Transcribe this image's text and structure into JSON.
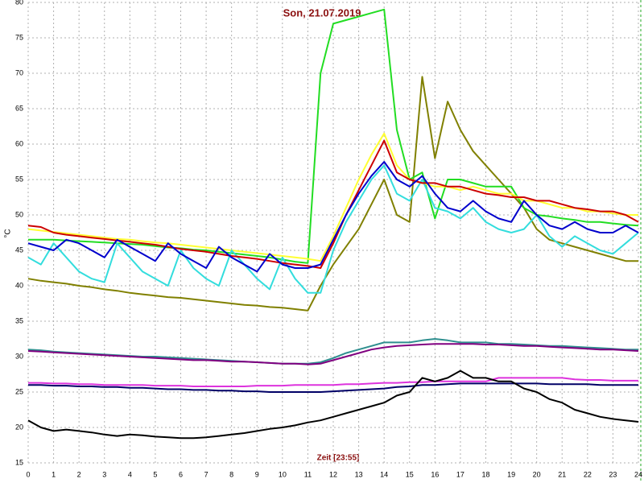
{
  "chart_data": {
    "type": "line",
    "title": "Son, 21.07.2019",
    "x_label": "Zeit [23:55]",
    "y_label": "°C",
    "xlim": [
      0,
      24
    ],
    "xticks": [
      0,
      1,
      2,
      3,
      4,
      5,
      6,
      7,
      8,
      9,
      10,
      11,
      12,
      13,
      14,
      15,
      16,
      17,
      18,
      19,
      20,
      21,
      22,
      23,
      24
    ],
    "ylim": [
      15,
      80
    ],
    "yticks": [
      15,
      20,
      25,
      30,
      35,
      40,
      45,
      50,
      55,
      60,
      65,
      70,
      75,
      80
    ],
    "grid": true,
    "x": [
      0,
      0.5,
      1,
      1.5,
      2,
      2.5,
      3,
      3.5,
      4,
      4.5,
      5,
      5.5,
      6,
      6.5,
      7,
      7.5,
      8,
      8.5,
      9,
      9.5,
      10,
      10.5,
      11,
      11.5,
      12,
      12.5,
      13,
      13.5,
      14,
      14.5,
      15,
      15.5,
      16,
      16.5,
      17,
      17.5,
      18,
      18.5,
      19,
      19.5,
      20,
      20.5,
      21,
      21.5,
      22,
      22.5,
      23,
      23.5,
      24
    ],
    "series": [
      {
        "color": "#808000",
        "values": [
          41,
          40.7,
          40.5,
          40.3,
          40,
          39.8,
          39.5,
          39.3,
          39,
          38.8,
          38.6,
          38.4,
          38.3,
          38.1,
          37.9,
          37.7,
          37.5,
          37.3,
          37.2,
          37,
          36.9,
          36.7,
          36.5,
          40,
          43,
          45.5,
          48,
          51.5,
          55,
          50,
          49,
          69.5,
          58,
          66,
          62,
          59,
          57,
          55,
          53,
          51,
          48,
          46.5,
          46,
          45.5,
          45,
          44.5,
          44,
          43.5,
          43.5
        ]
      },
      {
        "color": "#22dd22",
        "values": [
          46.5,
          46.5,
          46.5,
          46.4,
          46.3,
          46.2,
          46.1,
          46,
          45.9,
          45.8,
          45.6,
          45.4,
          45.3,
          45.1,
          45,
          44.8,
          44.6,
          44.4,
          44.2,
          44,
          43.7,
          43.4,
          43.2,
          70,
          77,
          77.5,
          78,
          78.5,
          79,
          62,
          55,
          56,
          49.5,
          55,
          55,
          54.5,
          54,
          54,
          54,
          51,
          50,
          49.8,
          49.5,
          49.3,
          49,
          49,
          48.8,
          48.6,
          48.5
        ]
      },
      {
        "color": "#ffff33",
        "values": [
          48,
          47.8,
          47.6,
          47.4,
          47.2,
          47,
          46.8,
          46.6,
          46.5,
          46.3,
          46.1,
          46,
          45.8,
          45.6,
          45.4,
          45.2,
          45,
          44.8,
          44.6,
          44.4,
          44.2,
          44,
          43.8,
          43.5,
          47,
          51,
          55,
          58.5,
          61.5,
          57,
          55,
          54.5,
          54,
          54,
          53.5,
          54,
          53.5,
          53,
          53,
          52,
          52,
          51.5,
          51,
          51,
          50.5,
          50.5,
          50.2,
          50,
          50
        ]
      },
      {
        "color": "#33dddd",
        "values": [
          44,
          43,
          46,
          44,
          42,
          41,
          40.5,
          46,
          44,
          42,
          41,
          40,
          45,
          42.5,
          41,
          40,
          45,
          43,
          41,
          39.5,
          44,
          41,
          39,
          39,
          45,
          49,
          52,
          55,
          57,
          53,
          52,
          55,
          51,
          50.5,
          49.5,
          51,
          49,
          48,
          47.5,
          48,
          50,
          47,
          45.5,
          47,
          46,
          45,
          44.5,
          46,
          47.5
        ]
      },
      {
        "color": "#cc0000",
        "values": [
          48.5,
          48.3,
          47.5,
          47.2,
          47,
          46.8,
          46.6,
          46.4,
          46.2,
          46,
          45.8,
          45.5,
          45.2,
          45,
          44.8,
          44.5,
          44.2,
          44,
          43.8,
          43.5,
          43.2,
          43,
          42.8,
          42.5,
          46,
          50,
          53.5,
          57,
          60.5,
          56,
          55,
          54.5,
          54.5,
          54,
          54,
          53.5,
          53,
          52.8,
          52.5,
          52.5,
          52,
          52,
          51.5,
          51,
          50.8,
          50.5,
          50.5,
          50,
          49
        ]
      },
      {
        "color": "#0000cc",
        "values": [
          46,
          45.5,
          45,
          46.5,
          46,
          45,
          44,
          46.5,
          45.5,
          44.5,
          43.5,
          46,
          44.5,
          43.5,
          42.5,
          45.5,
          44,
          43,
          42,
          44.5,
          43,
          42.5,
          42.5,
          43,
          46.5,
          50,
          53,
          55.5,
          57.5,
          55,
          54,
          55.5,
          53,
          51,
          50.5,
          52,
          50.5,
          49.5,
          49,
          52,
          50,
          48.5,
          48,
          49,
          48,
          47.5,
          47.5,
          48.5,
          47.5
        ]
      },
      {
        "color": "#2f8f8f",
        "values": [
          31,
          30.9,
          30.7,
          30.6,
          30.5,
          30.4,
          30.3,
          30.2,
          30.1,
          30,
          30,
          29.9,
          29.8,
          29.7,
          29.6,
          29.5,
          29.4,
          29.3,
          29.2,
          29.1,
          29,
          29,
          29,
          29.2,
          29.8,
          30.5,
          31,
          31.5,
          32,
          32,
          32,
          32.3,
          32.5,
          32.3,
          32,
          32,
          32,
          31.8,
          31.8,
          31.7,
          31.6,
          31.5,
          31.5,
          31.4,
          31.3,
          31.2,
          31.1,
          31,
          31
        ]
      },
      {
        "color": "#800080",
        "values": [
          30.8,
          30.7,
          30.6,
          30.5,
          30.4,
          30.3,
          30.2,
          30.1,
          30,
          29.9,
          29.8,
          29.7,
          29.6,
          29.5,
          29.5,
          29.4,
          29.3,
          29.3,
          29.2,
          29.1,
          29,
          29,
          28.9,
          29,
          29.5,
          30,
          30.5,
          31,
          31.3,
          31.5,
          31.6,
          31.7,
          31.8,
          31.8,
          31.8,
          31.8,
          31.7,
          31.7,
          31.6,
          31.5,
          31.5,
          31.4,
          31.3,
          31.2,
          31.1,
          31,
          31,
          30.9,
          30.8
        ]
      },
      {
        "color": "#dd33dd",
        "values": [
          26.3,
          26.3,
          26.2,
          26.2,
          26.1,
          26.1,
          26,
          26,
          26,
          26,
          25.9,
          25.9,
          25.9,
          25.8,
          25.8,
          25.8,
          25.8,
          25.8,
          25.9,
          25.9,
          25.9,
          26,
          26,
          26,
          26,
          26.1,
          26.1,
          26.2,
          26.3,
          26.3,
          26.4,
          26.4,
          26.5,
          26.5,
          26.5,
          26.5,
          26.5,
          27,
          27,
          27,
          27,
          27,
          27,
          26.8,
          26.7,
          26.7,
          26.6,
          26.6,
          26.6
        ]
      },
      {
        "color": "#000066",
        "values": [
          26,
          26,
          25.9,
          25.9,
          25.8,
          25.8,
          25.7,
          25.7,
          25.6,
          25.6,
          25.5,
          25.4,
          25.4,
          25.3,
          25.3,
          25.2,
          25.2,
          25.1,
          25.1,
          25,
          25,
          25,
          25,
          25,
          25.1,
          25.2,
          25.3,
          25.4,
          25.5,
          25.7,
          25.8,
          26,
          26,
          26.1,
          26.2,
          26.2,
          26.2,
          26.2,
          26.2,
          26.2,
          26.2,
          26.1,
          26.1,
          26.1,
          26.1,
          26,
          26,
          26,
          26
        ]
      },
      {
        "color": "#000000",
        "values": [
          21,
          20,
          19.5,
          19.7,
          19.5,
          19.3,
          19,
          18.8,
          19,
          18.9,
          18.7,
          18.6,
          18.5,
          18.5,
          18.6,
          18.8,
          19,
          19.2,
          19.5,
          19.8,
          20,
          20.3,
          20.7,
          21,
          21.5,
          22,
          22.5,
          23,
          23.5,
          24.5,
          25,
          27,
          26.5,
          27,
          28,
          27,
          27,
          26.5,
          26.5,
          25.5,
          25,
          24,
          23.5,
          22.5,
          22,
          21.5,
          21.2,
          21,
          20.8
        ]
      }
    ]
  }
}
